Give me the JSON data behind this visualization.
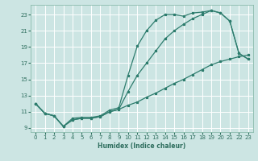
{
  "xlabel": "Humidex (Indice chaleur)",
  "bg_color": "#cce5e3",
  "grid_color": "#ffffff",
  "line_color": "#2e7d6e",
  "xlim": [
    -0.5,
    23.5
  ],
  "ylim": [
    8.5,
    24.2
  ],
  "xticks": [
    0,
    1,
    2,
    3,
    4,
    5,
    6,
    7,
    8,
    9,
    10,
    11,
    12,
    13,
    14,
    15,
    16,
    17,
    18,
    19,
    20,
    21,
    22,
    23
  ],
  "yticks": [
    9,
    11,
    13,
    15,
    17,
    19,
    21,
    23
  ],
  "line1_x": [
    0,
    1,
    2,
    3,
    4,
    5,
    6,
    7,
    8,
    9,
    10,
    11,
    12,
    13,
    14,
    15,
    16,
    17,
    18,
    19,
    20,
    21,
    22,
    23
  ],
  "line1_y": [
    12.0,
    10.8,
    10.5,
    9.2,
    10.2,
    10.3,
    10.3,
    10.5,
    11.2,
    11.5,
    15.5,
    19.1,
    21.0,
    22.3,
    23.0,
    23.0,
    22.8,
    23.2,
    23.3,
    23.5,
    23.2,
    22.2,
    18.2,
    17.5
  ],
  "line2_x": [
    0,
    1,
    2,
    3,
    4,
    5,
    6,
    7,
    8,
    9,
    10,
    11,
    12,
    13,
    14,
    15,
    16,
    17,
    18,
    19,
    20,
    21,
    22,
    23
  ],
  "line2_y": [
    12.0,
    10.8,
    10.5,
    9.2,
    10.0,
    10.2,
    10.2,
    10.4,
    11.0,
    11.3,
    13.5,
    15.5,
    17.0,
    18.5,
    20.0,
    21.0,
    21.8,
    22.5,
    23.0,
    23.5,
    23.2,
    22.2,
    18.2,
    17.5
  ],
  "line3_x": [
    0,
    1,
    2,
    3,
    4,
    5,
    6,
    7,
    8,
    9,
    10,
    11,
    12,
    13,
    14,
    15,
    16,
    17,
    18,
    19,
    20,
    21,
    22,
    23
  ],
  "line3_y": [
    12.0,
    10.8,
    10.5,
    9.2,
    10.0,
    10.2,
    10.2,
    10.4,
    11.0,
    11.3,
    11.8,
    12.2,
    12.8,
    13.3,
    13.9,
    14.5,
    15.0,
    15.6,
    16.2,
    16.8,
    17.2,
    17.5,
    17.8,
    18.0
  ]
}
